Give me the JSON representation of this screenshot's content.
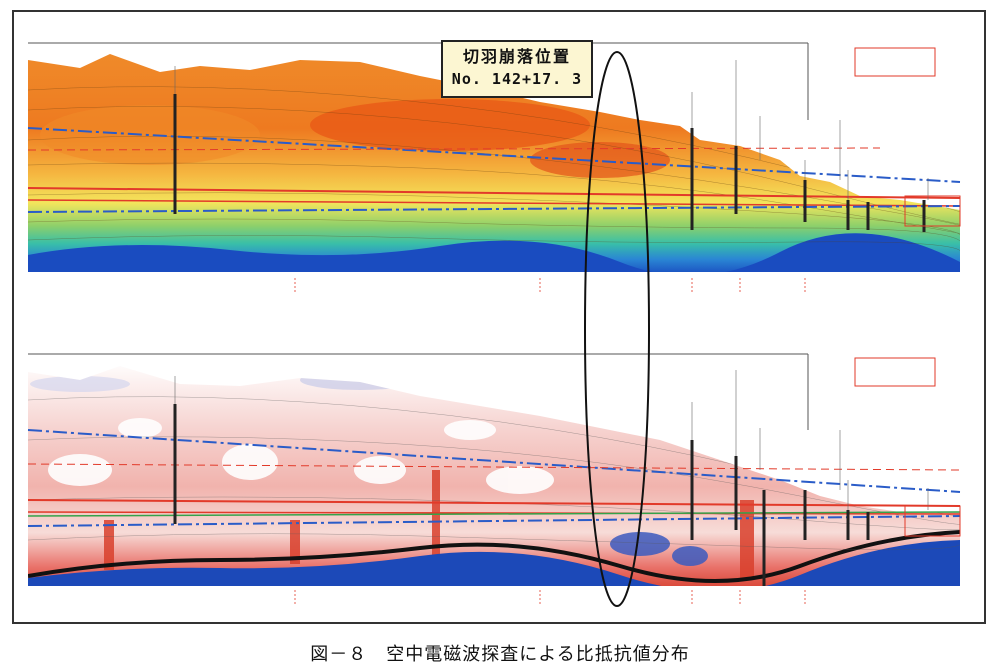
{
  "callout": {
    "line1": "切羽崩落位置",
    "line2": "No. 142+17. 3"
  },
  "caption": "図－８　空中電磁波探査による比抵抗値分布",
  "colors": {
    "upper_high": "#e8641a",
    "upper_mid": "#f6c23a",
    "upper_low": "#1b5fc4",
    "lower_high": "#e23b2a",
    "lower_low": "#1c49b8",
    "line_red": "#e23a2a",
    "line_blue": "#2a5cc8",
    "line_green": "#35a24a"
  }
}
